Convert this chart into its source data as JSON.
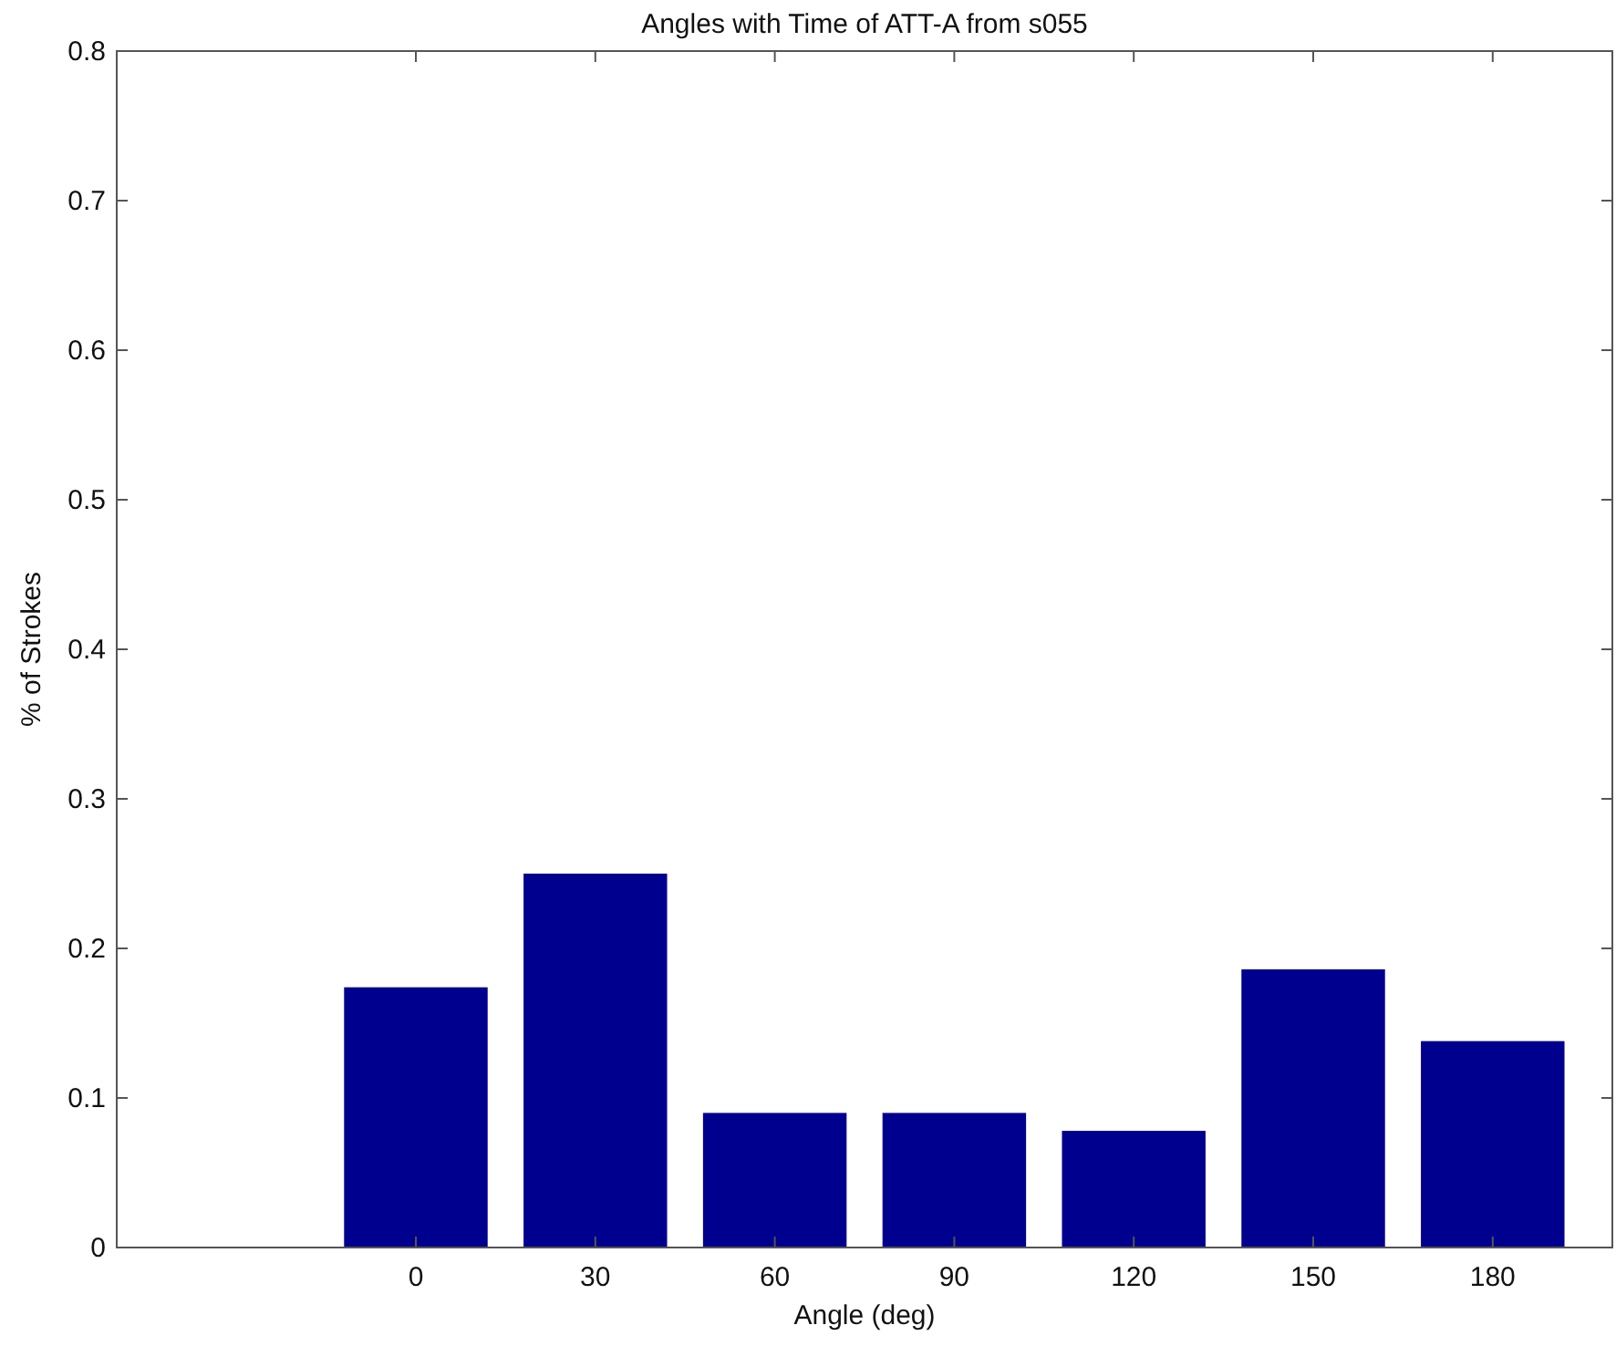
{
  "chart_data": {
    "type": "bar",
    "title": "Angles with Time of ATT-A from s055",
    "xlabel": "Angle (deg)",
    "ylabel": "% of Strokes",
    "x": [
      0,
      30,
      60,
      90,
      120,
      150,
      180
    ],
    "values": [
      0.174,
      0.25,
      0.09,
      0.09,
      0.078,
      0.186,
      0.138
    ],
    "color": "#00008f",
    "xlim": [
      -50,
      200
    ],
    "xticks": [
      0,
      30,
      60,
      90,
      120,
      150,
      180
    ],
    "ylim": [
      0,
      0.8
    ],
    "yticks": [
      0,
      0.1,
      0.2,
      0.3,
      0.4,
      0.5,
      0.6,
      0.7,
      0.8
    ]
  }
}
